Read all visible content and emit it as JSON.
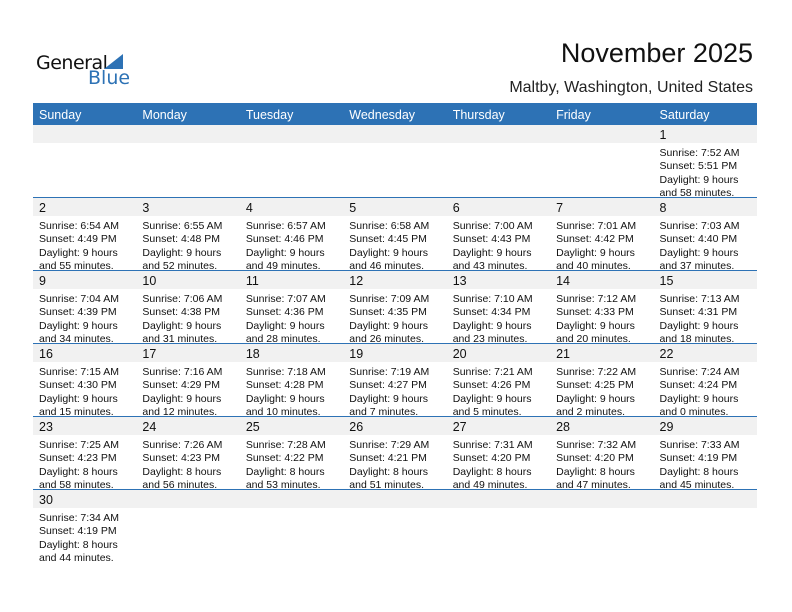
{
  "logo": {
    "line1": "General",
    "line2": "Blue"
  },
  "header": {
    "title": "November 2025",
    "location": "Maltby, Washington, United States"
  },
  "colors": {
    "accent": "#2d72b5",
    "row_band": "#f1f1f1"
  },
  "weekdays": [
    "Sunday",
    "Monday",
    "Tuesday",
    "Wednesday",
    "Thursday",
    "Friday",
    "Saturday"
  ],
  "weeks": [
    [
      null,
      null,
      null,
      null,
      null,
      null,
      {
        "day": "1",
        "sunrise": "Sunrise: 7:52 AM",
        "sunset": "Sunset: 5:51 PM",
        "daylight1": "Daylight: 9 hours",
        "daylight2": "and 58 minutes."
      }
    ],
    [
      {
        "day": "2",
        "sunrise": "Sunrise: 6:54 AM",
        "sunset": "Sunset: 4:49 PM",
        "daylight1": "Daylight: 9 hours",
        "daylight2": "and 55 minutes."
      },
      {
        "day": "3",
        "sunrise": "Sunrise: 6:55 AM",
        "sunset": "Sunset: 4:48 PM",
        "daylight1": "Daylight: 9 hours",
        "daylight2": "and 52 minutes."
      },
      {
        "day": "4",
        "sunrise": "Sunrise: 6:57 AM",
        "sunset": "Sunset: 4:46 PM",
        "daylight1": "Daylight: 9 hours",
        "daylight2": "and 49 minutes."
      },
      {
        "day": "5",
        "sunrise": "Sunrise: 6:58 AM",
        "sunset": "Sunset: 4:45 PM",
        "daylight1": "Daylight: 9 hours",
        "daylight2": "and 46 minutes."
      },
      {
        "day": "6",
        "sunrise": "Sunrise: 7:00 AM",
        "sunset": "Sunset: 4:43 PM",
        "daylight1": "Daylight: 9 hours",
        "daylight2": "and 43 minutes."
      },
      {
        "day": "7",
        "sunrise": "Sunrise: 7:01 AM",
        "sunset": "Sunset: 4:42 PM",
        "daylight1": "Daylight: 9 hours",
        "daylight2": "and 40 minutes."
      },
      {
        "day": "8",
        "sunrise": "Sunrise: 7:03 AM",
        "sunset": "Sunset: 4:40 PM",
        "daylight1": "Daylight: 9 hours",
        "daylight2": "and 37 minutes."
      }
    ],
    [
      {
        "day": "9",
        "sunrise": "Sunrise: 7:04 AM",
        "sunset": "Sunset: 4:39 PM",
        "daylight1": "Daylight: 9 hours",
        "daylight2": "and 34 minutes."
      },
      {
        "day": "10",
        "sunrise": "Sunrise: 7:06 AM",
        "sunset": "Sunset: 4:38 PM",
        "daylight1": "Daylight: 9 hours",
        "daylight2": "and 31 minutes."
      },
      {
        "day": "11",
        "sunrise": "Sunrise: 7:07 AM",
        "sunset": "Sunset: 4:36 PM",
        "daylight1": "Daylight: 9 hours",
        "daylight2": "and 28 minutes."
      },
      {
        "day": "12",
        "sunrise": "Sunrise: 7:09 AM",
        "sunset": "Sunset: 4:35 PM",
        "daylight1": "Daylight: 9 hours",
        "daylight2": "and 26 minutes."
      },
      {
        "day": "13",
        "sunrise": "Sunrise: 7:10 AM",
        "sunset": "Sunset: 4:34 PM",
        "daylight1": "Daylight: 9 hours",
        "daylight2": "and 23 minutes."
      },
      {
        "day": "14",
        "sunrise": "Sunrise: 7:12 AM",
        "sunset": "Sunset: 4:33 PM",
        "daylight1": "Daylight: 9 hours",
        "daylight2": "and 20 minutes."
      },
      {
        "day": "15",
        "sunrise": "Sunrise: 7:13 AM",
        "sunset": "Sunset: 4:31 PM",
        "daylight1": "Daylight: 9 hours",
        "daylight2": "and 18 minutes."
      }
    ],
    [
      {
        "day": "16",
        "sunrise": "Sunrise: 7:15 AM",
        "sunset": "Sunset: 4:30 PM",
        "daylight1": "Daylight: 9 hours",
        "daylight2": "and 15 minutes."
      },
      {
        "day": "17",
        "sunrise": "Sunrise: 7:16 AM",
        "sunset": "Sunset: 4:29 PM",
        "daylight1": "Daylight: 9 hours",
        "daylight2": "and 12 minutes."
      },
      {
        "day": "18",
        "sunrise": "Sunrise: 7:18 AM",
        "sunset": "Sunset: 4:28 PM",
        "daylight1": "Daylight: 9 hours",
        "daylight2": "and 10 minutes."
      },
      {
        "day": "19",
        "sunrise": "Sunrise: 7:19 AM",
        "sunset": "Sunset: 4:27 PM",
        "daylight1": "Daylight: 9 hours",
        "daylight2": "and 7 minutes."
      },
      {
        "day": "20",
        "sunrise": "Sunrise: 7:21 AM",
        "sunset": "Sunset: 4:26 PM",
        "daylight1": "Daylight: 9 hours",
        "daylight2": "and 5 minutes."
      },
      {
        "day": "21",
        "sunrise": "Sunrise: 7:22 AM",
        "sunset": "Sunset: 4:25 PM",
        "daylight1": "Daylight: 9 hours",
        "daylight2": "and 2 minutes."
      },
      {
        "day": "22",
        "sunrise": "Sunrise: 7:24 AM",
        "sunset": "Sunset: 4:24 PM",
        "daylight1": "Daylight: 9 hours",
        "daylight2": "and 0 minutes."
      }
    ],
    [
      {
        "day": "23",
        "sunrise": "Sunrise: 7:25 AM",
        "sunset": "Sunset: 4:23 PM",
        "daylight1": "Daylight: 8 hours",
        "daylight2": "and 58 minutes."
      },
      {
        "day": "24",
        "sunrise": "Sunrise: 7:26 AM",
        "sunset": "Sunset: 4:23 PM",
        "daylight1": "Daylight: 8 hours",
        "daylight2": "and 56 minutes."
      },
      {
        "day": "25",
        "sunrise": "Sunrise: 7:28 AM",
        "sunset": "Sunset: 4:22 PM",
        "daylight1": "Daylight: 8 hours",
        "daylight2": "and 53 minutes."
      },
      {
        "day": "26",
        "sunrise": "Sunrise: 7:29 AM",
        "sunset": "Sunset: 4:21 PM",
        "daylight1": "Daylight: 8 hours",
        "daylight2": "and 51 minutes."
      },
      {
        "day": "27",
        "sunrise": "Sunrise: 7:31 AM",
        "sunset": "Sunset: 4:20 PM",
        "daylight1": "Daylight: 8 hours",
        "daylight2": "and 49 minutes."
      },
      {
        "day": "28",
        "sunrise": "Sunrise: 7:32 AM",
        "sunset": "Sunset: 4:20 PM",
        "daylight1": "Daylight: 8 hours",
        "daylight2": "and 47 minutes."
      },
      {
        "day": "29",
        "sunrise": "Sunrise: 7:33 AM",
        "sunset": "Sunset: 4:19 PM",
        "daylight1": "Daylight: 8 hours",
        "daylight2": "and 45 minutes."
      }
    ],
    [
      {
        "day": "30",
        "sunrise": "Sunrise: 7:34 AM",
        "sunset": "Sunset: 4:19 PM",
        "daylight1": "Daylight: 8 hours",
        "daylight2": "and 44 minutes."
      },
      null,
      null,
      null,
      null,
      null,
      null
    ]
  ]
}
